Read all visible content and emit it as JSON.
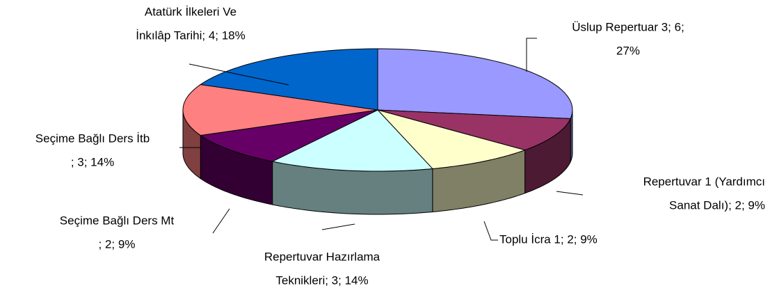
{
  "chart_data": {
    "type": "pie3d",
    "categories": [
      "Üslup Repertuar 3",
      "Repertuvar 1 (Yardımcı Sanat Dalı)",
      "Toplu İcra 1",
      "Repertuvar Hazırlama Teknikleri",
      "Seçime Bağlı Ders Mt",
      "Seçime Bağlı Ders İtb",
      "Atatürk İlkeleri Ve İnkılâp Tarihi"
    ],
    "values": [
      6,
      2,
      2,
      3,
      2,
      3,
      4
    ],
    "value_labels": [
      [
        "Üslup Repertuar 3; 6;",
        "27%"
      ],
      [
        "Repertuvar 1 (Yardımcı",
        "Sanat Dalı); 2; 9%"
      ],
      [
        "Toplu İcra 1; 2; 9%"
      ],
      [
        "Repertuvar Hazırlama",
        "Teknikleri; 3; 14%"
      ],
      [
        "Seçime Bağlı Ders Mt",
        "; 2; 9%"
      ],
      [
        "Seçime Bağlı Ders İtb",
        "; 3; 14%"
      ],
      [
        "Atatürk İlkeleri Ve",
        "İnkılâp Tarihi; 4; 18%"
      ]
    ],
    "colors": [
      "#9999ff",
      "#993366",
      "#ffffcc",
      "#ccffff",
      "#660066",
      "#ff8080",
      "#0066cc"
    ]
  }
}
